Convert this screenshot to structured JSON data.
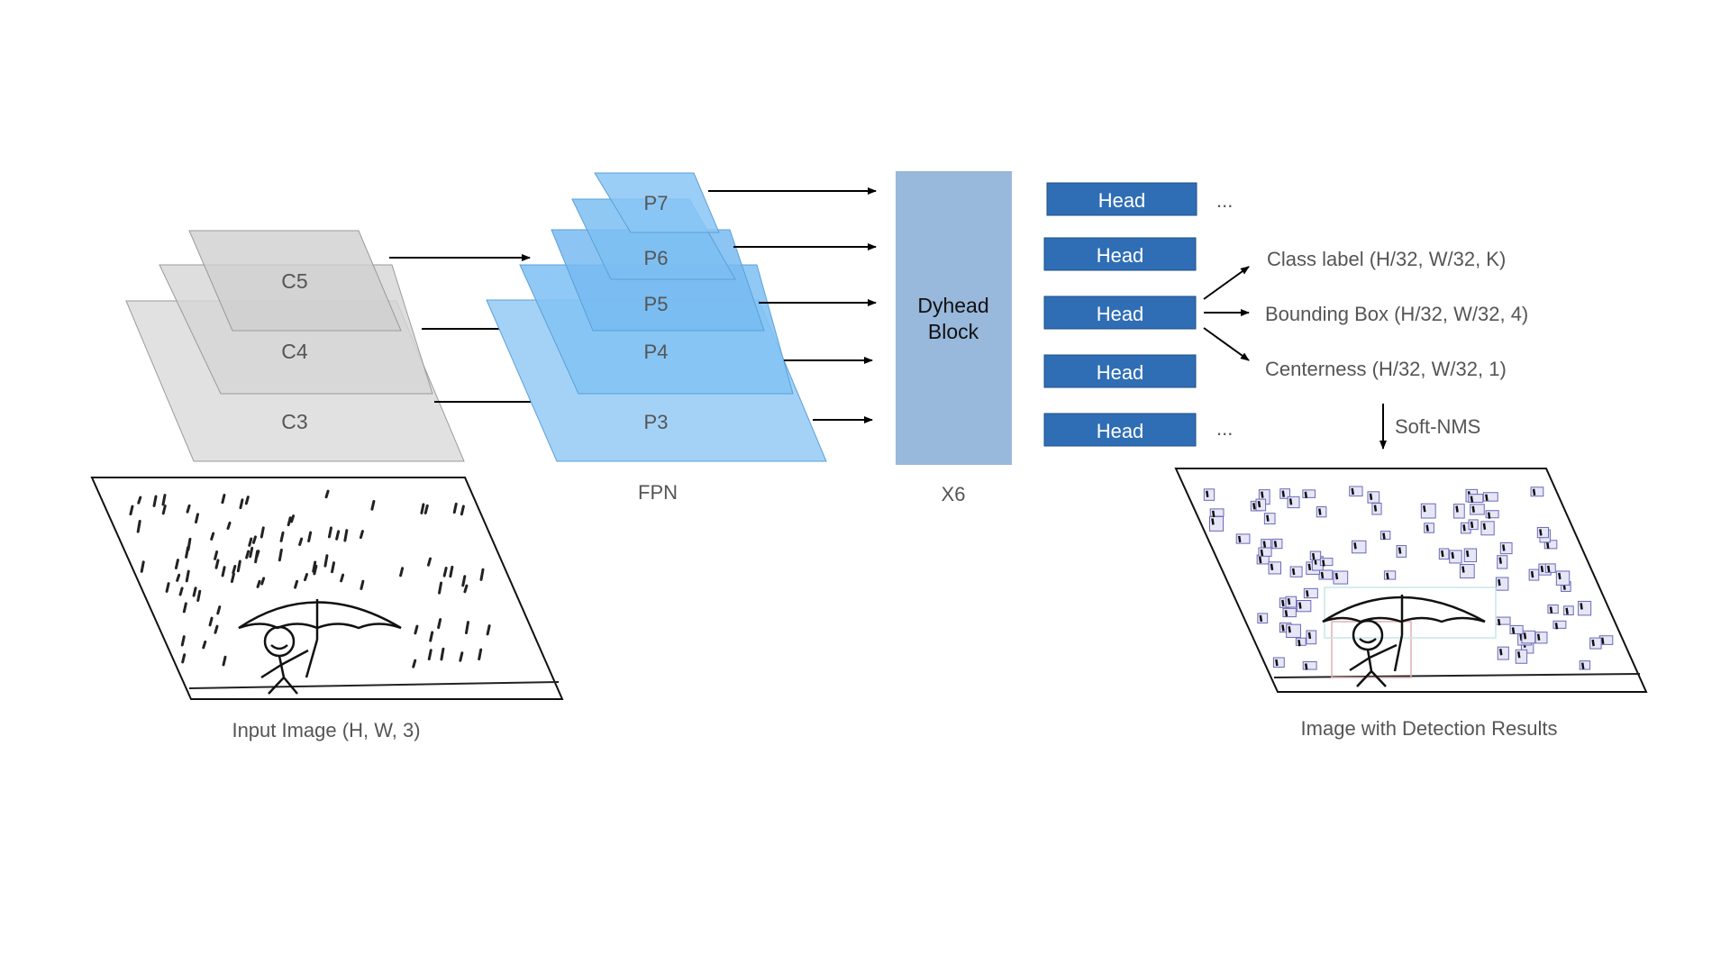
{
  "backbone": {
    "layers": [
      "C5",
      "C4",
      "C3"
    ]
  },
  "fpn": {
    "layers": [
      "P7",
      "P6",
      "P5",
      "P4",
      "P3"
    ],
    "label": "FPN"
  },
  "dyhead": {
    "line1": "Dyhead",
    "line2": "Block",
    "repeat": "X6"
  },
  "heads": {
    "label": "Head",
    "ellipsis": "..."
  },
  "outputs": {
    "class_label": "Class label (H/32, W/32, K)",
    "bounding_box": "Bounding Box (H/32, W/32, 4)",
    "centerness": "Centerness (H/32, W/32, 1)",
    "nms": "Soft-NMS"
  },
  "input_caption": "Input Image (H, W, 3)",
  "output_caption": "Image with Detection Results",
  "colors": {
    "backbone_fill": "#d9d9d9",
    "fpn_fill": "#7fc0f2",
    "dyhead_fill": "#98b8dc",
    "head_fill": "#2f6eb5"
  }
}
